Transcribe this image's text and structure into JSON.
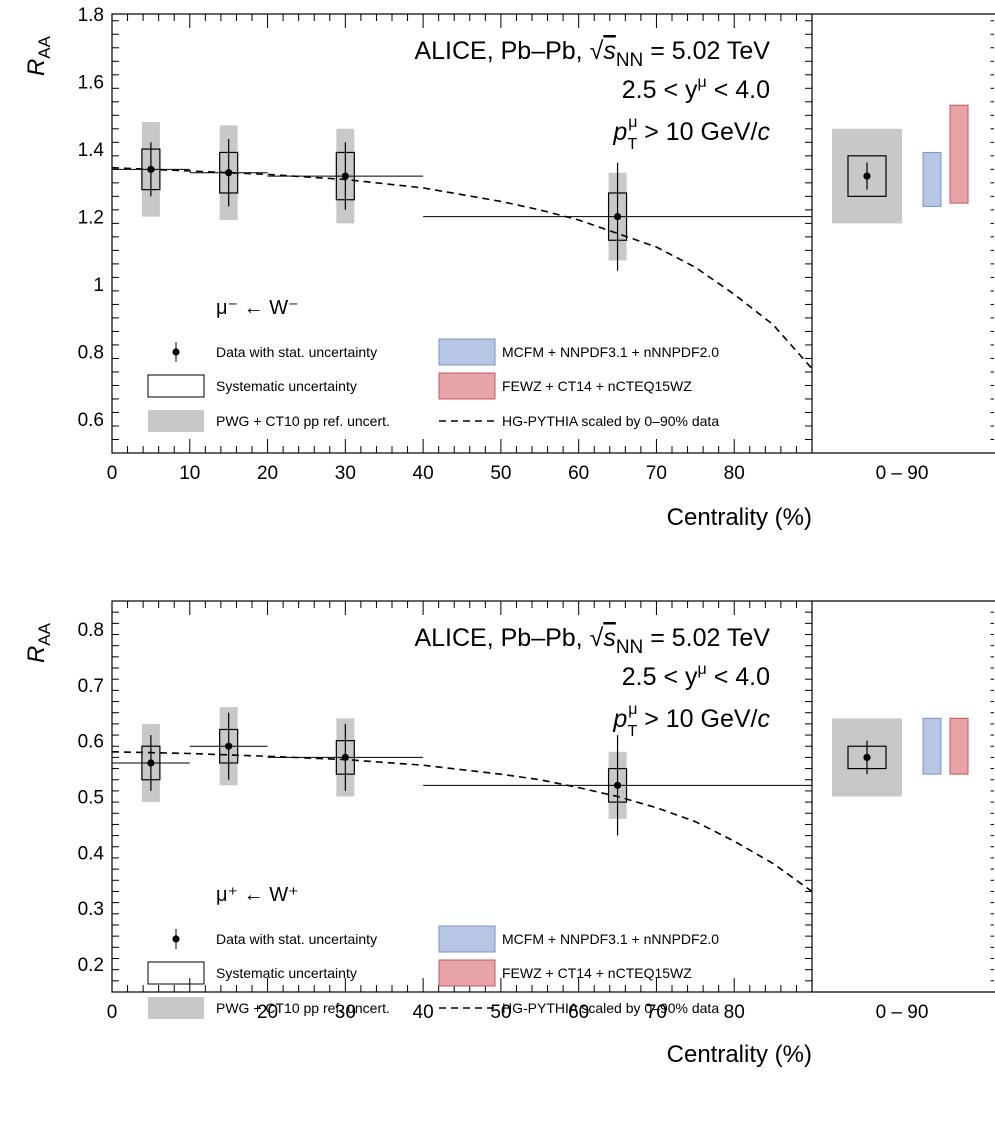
{
  "chart_data": [
    {
      "type": "scatter",
      "id": "wminus",
      "ylabel": "R",
      "ylabel_sub": "AA",
      "xlabel": "Centrality (%)",
      "xlim": [
        0,
        90
      ],
      "ylim": [
        0.5,
        1.8
      ],
      "yticks": [
        0.6,
        0.8,
        1,
        1.2,
        1.4,
        1.6,
        1.8
      ],
      "ytick_labels": [
        "0.6",
        "0.8",
        "1",
        "1.2",
        "1.4",
        "1.6",
        "1.8"
      ],
      "xticks": [
        0,
        10,
        20,
        30,
        40,
        50,
        60,
        70,
        80
      ],
      "xtick_labels": [
        "0",
        "10",
        "20",
        "30",
        "40",
        "50",
        "60",
        "70",
        "80"
      ],
      "annotation": {
        "experiment": "ALICE, Pb–Pb,",
        "energy_symbol": "s",
        "energy_sub": "NN",
        "energy_value": "= 5.02 TeV",
        "rapidity": "2.5 < y",
        "rapidity_sup": "μ",
        "rapidity_end": " < 4.0",
        "pt_symbol": "p",
        "pt_sup": "μ",
        "pt_sub": "T",
        "pt_value": " > 10 GeV/",
        "pt_unit": "c"
      },
      "process_label": "μ⁻ ← W⁻",
      "points": [
        {
          "x": 5,
          "xlo": 0,
          "xhi": 10,
          "y": 1.34,
          "stat": [
            1.26,
            1.42
          ],
          "syst": [
            1.28,
            1.4
          ],
          "ref": [
            1.2,
            1.48
          ]
        },
        {
          "x": 15,
          "xlo": 10,
          "xhi": 20,
          "y": 1.33,
          "stat": [
            1.23,
            1.43
          ],
          "syst": [
            1.27,
            1.39
          ],
          "ref": [
            1.19,
            1.47
          ]
        },
        {
          "x": 30,
          "xlo": 20,
          "xhi": 40,
          "y": 1.32,
          "stat": [
            1.22,
            1.42
          ],
          "syst": [
            1.25,
            1.39
          ],
          "ref": [
            1.18,
            1.46
          ]
        },
        {
          "x": 65,
          "xlo": 40,
          "xhi": 90,
          "y": 1.2,
          "stat": [
            1.04,
            1.36
          ],
          "syst": [
            1.13,
            1.27
          ],
          "ref": [
            1.07,
            1.33
          ]
        }
      ],
      "model_curve": {
        "name": "HG-PYTHIA scaled by 0–90% data",
        "x": [
          0,
          10,
          20,
          30,
          40,
          50,
          55,
          60,
          65,
          70,
          75,
          80,
          85,
          90
        ],
        "y": [
          1.345,
          1.335,
          1.325,
          1.31,
          1.285,
          1.245,
          1.22,
          1.19,
          1.15,
          1.11,
          1.05,
          0.97,
          0.88,
          0.75
        ]
      },
      "integrated": {
        "label": "0 – 90",
        "data": {
          "y": 1.32,
          "stat": [
            1.28,
            1.36
          ],
          "syst": [
            1.26,
            1.38
          ],
          "ref": [
            1.18,
            1.46
          ]
        },
        "mcfm": [
          1.23,
          1.39
        ],
        "fewz": [
          1.24,
          1.53
        ]
      },
      "legend": [
        {
          "kind": "point",
          "label": "Data with stat. uncertainty"
        },
        {
          "kind": "box",
          "label": "Systematic uncertainty"
        },
        {
          "kind": "grey",
          "label": "PWG + CT10 pp ref. uncert."
        },
        {
          "kind": "blue",
          "label": "MCFM + NNPDF3.1 + nNNPDF2.0"
        },
        {
          "kind": "red",
          "label": "FEWZ + CT14 + nCTEQ15WZ"
        },
        {
          "kind": "dash",
          "label": "HG-PYTHIA scaled by 0–90% data"
        }
      ]
    },
    {
      "type": "scatter",
      "id": "wplus",
      "ylabel": "R",
      "ylabel_sub": "AA",
      "xlabel": "Centrality (%)",
      "xlim": [
        0,
        90
      ],
      "ylim": [
        0.15,
        0.85
      ],
      "yticks": [
        0.2,
        0.3,
        0.4,
        0.5,
        0.6,
        0.7,
        0.8
      ],
      "ytick_labels": [
        "0.2",
        "0.3",
        "0.4",
        "0.5",
        "0.6",
        "0.7",
        "0.8"
      ],
      "xticks": [
        0,
        10,
        20,
        30,
        40,
        50,
        60,
        70,
        80
      ],
      "xtick_labels": [
        "0",
        "10",
        "20",
        "30",
        "40",
        "50",
        "60",
        "70",
        "80"
      ],
      "annotation": {
        "experiment": "ALICE, Pb–Pb,",
        "energy_symbol": "s",
        "energy_sub": "NN",
        "energy_value": "= 5.02 TeV",
        "rapidity": "2.5 < y",
        "rapidity_sup": "μ",
        "rapidity_end": " < 4.0",
        "pt_symbol": "p",
        "pt_sup": "μ",
        "pt_sub": "T",
        "pt_value": " > 10 GeV/",
        "pt_unit": "c"
      },
      "process_label": "μ⁺ ← W⁺",
      "points": [
        {
          "x": 5,
          "xlo": 0,
          "xhi": 10,
          "y": 0.56,
          "stat": [
            0.51,
            0.61
          ],
          "syst": [
            0.53,
            0.59
          ],
          "ref": [
            0.49,
            0.63
          ]
        },
        {
          "x": 15,
          "xlo": 10,
          "xhi": 20,
          "y": 0.59,
          "stat": [
            0.53,
            0.65
          ],
          "syst": [
            0.56,
            0.62
          ],
          "ref": [
            0.52,
            0.66
          ]
        },
        {
          "x": 30,
          "xlo": 20,
          "xhi": 40,
          "y": 0.57,
          "stat": [
            0.51,
            0.63
          ],
          "syst": [
            0.54,
            0.6
          ],
          "ref": [
            0.5,
            0.64
          ]
        },
        {
          "x": 65,
          "xlo": 40,
          "xhi": 90,
          "y": 0.52,
          "stat": [
            0.43,
            0.61
          ],
          "syst": [
            0.49,
            0.55
          ],
          "ref": [
            0.46,
            0.58
          ]
        }
      ],
      "model_curve": {
        "name": "HG-PYTHIA scaled by 0–90% data",
        "x": [
          0,
          10,
          20,
          30,
          40,
          50,
          55,
          60,
          65,
          70,
          75,
          80,
          85,
          90
        ],
        "y": [
          0.58,
          0.577,
          0.572,
          0.566,
          0.556,
          0.54,
          0.53,
          0.516,
          0.5,
          0.48,
          0.455,
          0.42,
          0.38,
          0.33
        ]
      },
      "integrated": {
        "label": "0 – 90",
        "data": {
          "y": 0.57,
          "stat": [
            0.54,
            0.6
          ],
          "syst": [
            0.55,
            0.59
          ],
          "ref": [
            0.5,
            0.64
          ]
        },
        "mcfm": [
          0.54,
          0.64
        ],
        "fewz": [
          0.54,
          0.64
        ]
      },
      "legend": [
        {
          "kind": "point",
          "label": "Data with stat. uncertainty"
        },
        {
          "kind": "box",
          "label": "Systematic uncertainty"
        },
        {
          "kind": "grey",
          "label": "PWG + CT10 pp ref. uncert."
        },
        {
          "kind": "blue",
          "label": "MCFM + NNPDF3.1 + nNNPDF2.0"
        },
        {
          "kind": "red",
          "label": "FEWZ + CT14 + nCTEQ15WZ"
        },
        {
          "kind": "dash",
          "label": "HG-PYTHIA scaled by 0–90% data"
        }
      ]
    }
  ],
  "colors": {
    "grey_band": "#c8c8c8",
    "mcfm_fill": "#b8c6e6",
    "mcfm_edge": "#7d93c9",
    "fewz_fill": "#e6a3a8",
    "fewz_edge": "#c8555e",
    "axis": "#000000"
  }
}
